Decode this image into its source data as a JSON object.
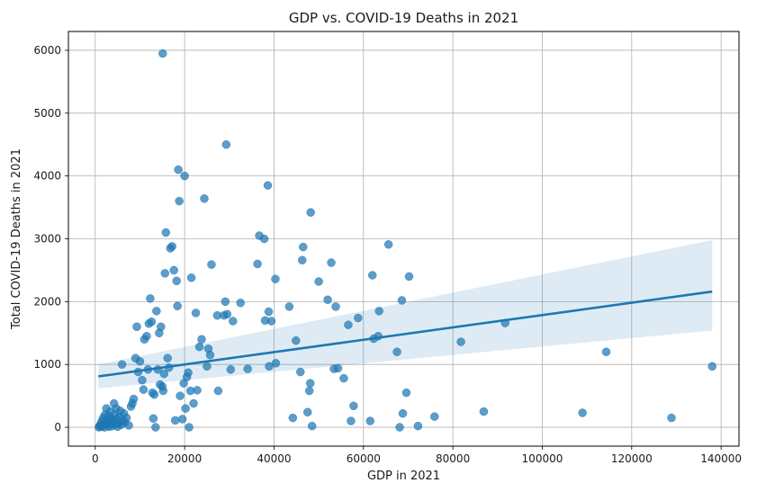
{
  "chart_data": {
    "type": "scatter",
    "title": "GDP vs. COVID-19 Deaths in 2021",
    "xlabel": "GDP in 2021",
    "ylabel": "Total COVID-19 Deaths in 2021",
    "xlim": [
      -6000,
      144000
    ],
    "ylim": [
      -300,
      6300
    ],
    "xticks": [
      0,
      20000,
      40000,
      60000,
      80000,
      100000,
      120000,
      140000
    ],
    "yticks": [
      0,
      1000,
      2000,
      3000,
      4000,
      5000,
      6000
    ],
    "grid": true,
    "point_color": "#1f77b4",
    "regression": {
      "x": [
        700,
        138000
      ],
      "y": [
        810,
        2160
      ],
      "ci_lower": [
        620,
        1540
      ],
      "ci_upper": [
        1000,
        2980
      ],
      "color": "#1f77b4"
    },
    "points": [
      [
        800,
        0
      ],
      [
        1000,
        20
      ],
      [
        1200,
        50
      ],
      [
        1400,
        10
      ],
      [
        1500,
        100
      ],
      [
        1600,
        30
      ],
      [
        1800,
        150
      ],
      [
        2000,
        60
      ],
      [
        2100,
        0
      ],
      [
        2200,
        200
      ],
      [
        2300,
        80
      ],
      [
        2500,
        300
      ],
      [
        2600,
        120
      ],
      [
        2800,
        40
      ],
      [
        3000,
        180
      ],
      [
        3100,
        10
      ],
      [
        3200,
        90
      ],
      [
        3400,
        250
      ],
      [
        3500,
        60
      ],
      [
        3600,
        140
      ],
      [
        3800,
        20
      ],
      [
        4000,
        100
      ],
      [
        4200,
        380
      ],
      [
        4300,
        200
      ],
      [
        4500,
        50
      ],
      [
        4700,
        300
      ],
      [
        4800,
        130
      ],
      [
        5000,
        10
      ],
      [
        5200,
        70
      ],
      [
        5400,
        170
      ],
      [
        5600,
        260
      ],
      [
        5800,
        40
      ],
      [
        6000,
        1000
      ],
      [
        6200,
        110
      ],
      [
        6400,
        220
      ],
      [
        6600,
        80
      ],
      [
        7000,
        150
      ],
      [
        7500,
        30
      ],
      [
        8000,
        330
      ],
      [
        8300,
        380
      ],
      [
        8600,
        450
      ],
      [
        9000,
        1100
      ],
      [
        9300,
        1600
      ],
      [
        9600,
        880
      ],
      [
        10000,
        1050
      ],
      [
        10500,
        750
      ],
      [
        10800,
        600
      ],
      [
        11000,
        1400
      ],
      [
        11500,
        1450
      ],
      [
        11800,
        920
      ],
      [
        12000,
        1650
      ],
      [
        12300,
        2050
      ],
      [
        12600,
        1680
      ],
      [
        12800,
        550
      ],
      [
        13000,
        140
      ],
      [
        13200,
        520
      ],
      [
        13500,
        0
      ],
      [
        13700,
        1850
      ],
      [
        14000,
        920
      ],
      [
        14300,
        1500
      ],
      [
        14500,
        680
      ],
      [
        14700,
        1600
      ],
      [
        15000,
        650
      ],
      [
        15200,
        580
      ],
      [
        15400,
        850
      ],
      [
        15600,
        2450
      ],
      [
        15800,
        3100
      ],
      [
        16200,
        1100
      ],
      [
        16500,
        950
      ],
      [
        16800,
        2850
      ],
      [
        17200,
        2880
      ],
      [
        17600,
        2500
      ],
      [
        17900,
        110
      ],
      [
        18200,
        2330
      ],
      [
        18400,
        1930
      ],
      [
        18600,
        4100
      ],
      [
        18800,
        3600
      ],
      [
        19000,
        500
      ],
      [
        19500,
        130
      ],
      [
        19800,
        700
      ],
      [
        20000,
        4000
      ],
      [
        20200,
        300
      ],
      [
        20500,
        800
      ],
      [
        20800,
        870
      ],
      [
        21000,
        0
      ],
      [
        21300,
        580
      ],
      [
        21500,
        2380
      ],
      [
        22000,
        380
      ],
      [
        22500,
        1820
      ],
      [
        22800,
        590
      ],
      [
        23300,
        1280
      ],
      [
        23800,
        1400
      ],
      [
        24400,
        3640
      ],
      [
        25000,
        970
      ],
      [
        25300,
        1250
      ],
      [
        25700,
        1150
      ],
      [
        26000,
        2590
      ],
      [
        27300,
        1780
      ],
      [
        27500,
        580
      ],
      [
        28800,
        1780
      ],
      [
        29100,
        2000
      ],
      [
        29300,
        4500
      ],
      [
        29500,
        1800
      ],
      [
        30300,
        920
      ],
      [
        30800,
        1690
      ],
      [
        32500,
        1980
      ],
      [
        34100,
        930
      ],
      [
        36300,
        2600
      ],
      [
        36700,
        3050
      ],
      [
        37800,
        3000
      ],
      [
        38000,
        1700
      ],
      [
        38600,
        3850
      ],
      [
        38800,
        1840
      ],
      [
        38900,
        970
      ],
      [
        39400,
        1690
      ],
      [
        40300,
        2360
      ],
      [
        40400,
        1020
      ],
      [
        43400,
        1920
      ],
      [
        44200,
        150
      ],
      [
        44900,
        1380
      ],
      [
        45900,
        880
      ],
      [
        46300,
        2660
      ],
      [
        46500,
        2870
      ],
      [
        47500,
        240
      ],
      [
        47900,
        580
      ],
      [
        48100,
        700
      ],
      [
        48200,
        3420
      ],
      [
        48500,
        20
      ],
      [
        50000,
        2320
      ],
      [
        52000,
        2030
      ],
      [
        52800,
        2620
      ],
      [
        53400,
        930
      ],
      [
        53800,
        1920
      ],
      [
        54300,
        940
      ],
      [
        55600,
        780
      ],
      [
        56600,
        1630
      ],
      [
        57200,
        100
      ],
      [
        57800,
        340
      ],
      [
        58800,
        1740
      ],
      [
        61500,
        100
      ],
      [
        62000,
        2420
      ],
      [
        62300,
        1410
      ],
      [
        63300,
        1450
      ],
      [
        63500,
        1850
      ],
      [
        65600,
        2910
      ],
      [
        67500,
        1200
      ],
      [
        68100,
        0
      ],
      [
        68600,
        2020
      ],
      [
        68800,
        220
      ],
      [
        69600,
        550
      ],
      [
        70200,
        2400
      ],
      [
        72200,
        20
      ],
      [
        75900,
        170
      ],
      [
        81800,
        1360
      ],
      [
        86900,
        250
      ],
      [
        91700,
        1660
      ],
      [
        109000,
        230
      ],
      [
        114300,
        1200
      ],
      [
        128900,
        150
      ],
      [
        138000,
        970
      ],
      [
        15100,
        5950
      ]
    ]
  }
}
